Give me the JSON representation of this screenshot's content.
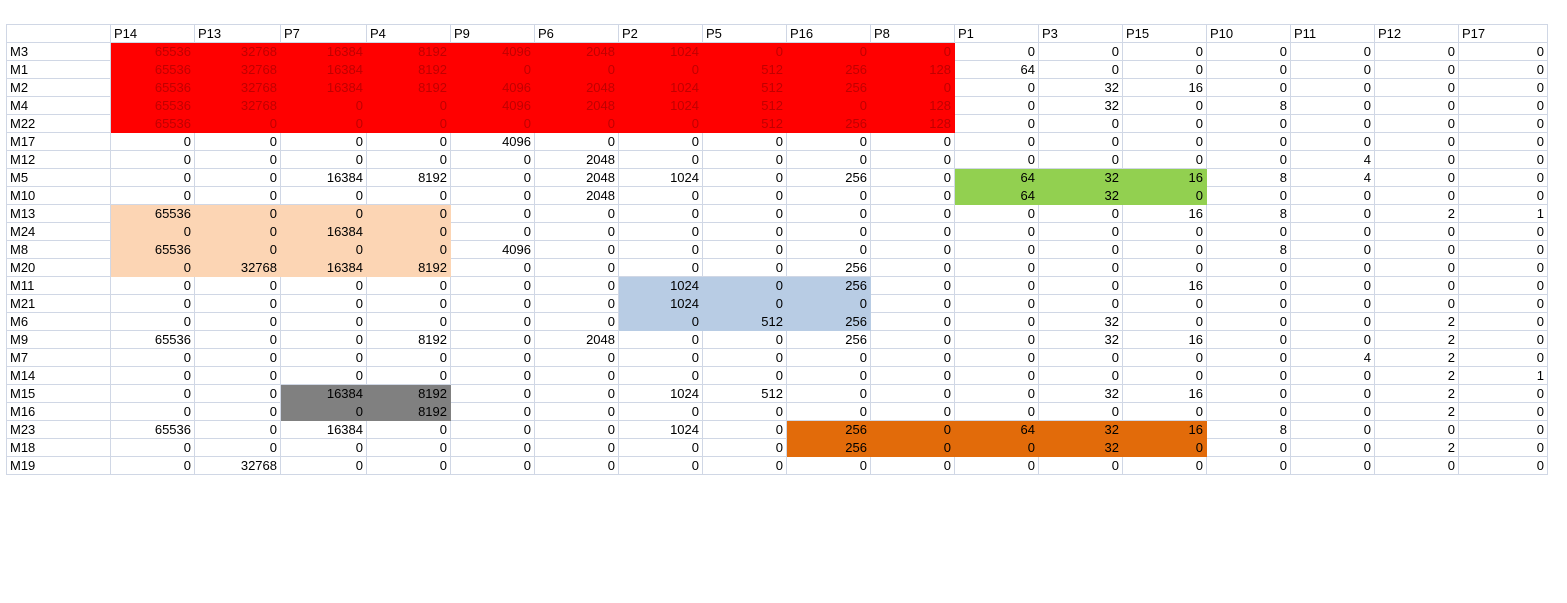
{
  "columns": [
    "P14",
    "P13",
    "P7",
    "P4",
    "P9",
    "P6",
    "P2",
    "P5",
    "P16",
    "P8",
    "P1",
    "P3",
    "P15",
    "P10",
    "P11",
    "P12",
    "P17"
  ],
  "rows": [
    {
      "label": "M3",
      "values": [
        65536,
        32768,
        16384,
        8192,
        4096,
        2048,
        1024,
        0,
        0,
        0,
        0,
        0,
        0,
        0,
        0,
        0,
        0
      ]
    },
    {
      "label": "M1",
      "values": [
        65536,
        32768,
        16384,
        8192,
        0,
        0,
        0,
        512,
        256,
        128,
        64,
        0,
        0,
        0,
        0,
        0,
        0
      ]
    },
    {
      "label": "M2",
      "values": [
        65536,
        32768,
        16384,
        8192,
        4096,
        2048,
        1024,
        512,
        256,
        0,
        0,
        32,
        16,
        0,
        0,
        0,
        0
      ]
    },
    {
      "label": "M4",
      "values": [
        65536,
        32768,
        0,
        0,
        4096,
        2048,
        1024,
        512,
        0,
        128,
        0,
        32,
        0,
        8,
        0,
        0,
        0
      ]
    },
    {
      "label": "M22",
      "values": [
        65536,
        0,
        0,
        0,
        0,
        0,
        0,
        512,
        256,
        128,
        0,
        0,
        0,
        0,
        0,
        0,
        0
      ]
    },
    {
      "label": "M17",
      "values": [
        0,
        0,
        0,
        0,
        4096,
        0,
        0,
        0,
        0,
        0,
        0,
        0,
        0,
        0,
        0,
        0,
        0
      ]
    },
    {
      "label": "M12",
      "values": [
        0,
        0,
        0,
        0,
        0,
        2048,
        0,
        0,
        0,
        0,
        0,
        0,
        0,
        0,
        4,
        0,
        0
      ]
    },
    {
      "label": "M5",
      "values": [
        0,
        0,
        16384,
        8192,
        0,
        2048,
        1024,
        0,
        256,
        0,
        64,
        32,
        16,
        8,
        4,
        0,
        0
      ]
    },
    {
      "label": "M10",
      "values": [
        0,
        0,
        0,
        0,
        0,
        2048,
        0,
        0,
        0,
        0,
        64,
        32,
        0,
        0,
        0,
        0,
        0
      ]
    },
    {
      "label": "M13",
      "values": [
        65536,
        0,
        0,
        0,
        0,
        0,
        0,
        0,
        0,
        0,
        0,
        0,
        16,
        8,
        0,
        2,
        1
      ]
    },
    {
      "label": "M24",
      "values": [
        0,
        0,
        16384,
        0,
        0,
        0,
        0,
        0,
        0,
        0,
        0,
        0,
        0,
        0,
        0,
        0,
        0
      ]
    },
    {
      "label": "M8",
      "values": [
        65536,
        0,
        0,
        0,
        4096,
        0,
        0,
        0,
        0,
        0,
        0,
        0,
        0,
        8,
        0,
        0,
        0
      ]
    },
    {
      "label": "M20",
      "values": [
        0,
        32768,
        16384,
        8192,
        0,
        0,
        0,
        0,
        256,
        0,
        0,
        0,
        0,
        0,
        0,
        0,
        0
      ]
    },
    {
      "label": "M11",
      "values": [
        0,
        0,
        0,
        0,
        0,
        0,
        1024,
        0,
        256,
        0,
        0,
        0,
        16,
        0,
        0,
        0,
        0
      ]
    },
    {
      "label": "M21",
      "values": [
        0,
        0,
        0,
        0,
        0,
        0,
        1024,
        0,
        0,
        0,
        0,
        0,
        0,
        0,
        0,
        0,
        0
      ]
    },
    {
      "label": "M6",
      "values": [
        0,
        0,
        0,
        0,
        0,
        0,
        0,
        512,
        256,
        0,
        0,
        32,
        0,
        0,
        0,
        2,
        0
      ]
    },
    {
      "label": "M9",
      "values": [
        65536,
        0,
        0,
        8192,
        0,
        2048,
        0,
        0,
        256,
        0,
        0,
        32,
        16,
        0,
        0,
        2,
        0
      ]
    },
    {
      "label": "M7",
      "values": [
        0,
        0,
        0,
        0,
        0,
        0,
        0,
        0,
        0,
        0,
        0,
        0,
        0,
        0,
        4,
        2,
        0
      ]
    },
    {
      "label": "M14",
      "values": [
        0,
        0,
        0,
        0,
        0,
        0,
        0,
        0,
        0,
        0,
        0,
        0,
        0,
        0,
        0,
        2,
        1
      ]
    },
    {
      "label": "M15",
      "values": [
        0,
        0,
        16384,
        8192,
        0,
        0,
        1024,
        512,
        0,
        0,
        0,
        32,
        16,
        0,
        0,
        2,
        0
      ]
    },
    {
      "label": "M16",
      "values": [
        0,
        0,
        0,
        8192,
        0,
        0,
        0,
        0,
        0,
        0,
        0,
        0,
        0,
        0,
        0,
        2,
        0
      ]
    },
    {
      "label": "M23",
      "values": [
        65536,
        0,
        16384,
        0,
        0,
        0,
        1024,
        0,
        256,
        0,
        64,
        32,
        16,
        8,
        0,
        0,
        0
      ]
    },
    {
      "label": "M18",
      "values": [
        0,
        0,
        0,
        0,
        0,
        0,
        0,
        0,
        256,
        0,
        0,
        32,
        0,
        0,
        0,
        2,
        0
      ]
    },
    {
      "label": "M19",
      "values": [
        0,
        32768,
        0,
        0,
        0,
        0,
        0,
        0,
        0,
        0,
        0,
        0,
        0,
        0,
        0,
        0,
        0
      ]
    }
  ],
  "colors": {
    "red": "#ff0000",
    "peach": "#fcd5b4",
    "green": "#92d050",
    "blue": "#b8cce4",
    "gray": "#808080",
    "orange": "#e26b0a"
  }
}
